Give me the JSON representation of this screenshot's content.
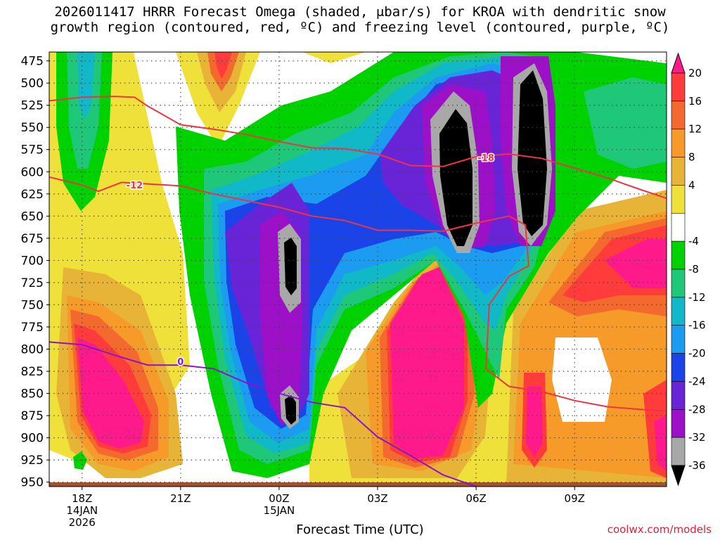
{
  "chart_data": {
    "type": "heatmap",
    "title_line1": "2026011417 HRRR Forecast Omega (shaded, μbar/s) for KROA with dendritic snow",
    "title_line2": "growth region (contoured, red, ºC) and freezing level (contoured, purple, ºC)",
    "xlabel": "Forecast Time (UTC)",
    "ylabel": "",
    "x_ticks": [
      {
        "label": "18Z",
        "sub": [
          "14JAN",
          "2026"
        ],
        "hour": 0
      },
      {
        "label": "21Z",
        "sub": [],
        "hour": 3
      },
      {
        "label": "00Z",
        "sub": [
          "15JAN"
        ],
        "hour": 6
      },
      {
        "label": "03Z",
        "sub": [],
        "hour": 9
      },
      {
        "label": "06Z",
        "sub": [],
        "hour": 12
      },
      {
        "label": "09Z",
        "sub": [],
        "hour": 15
      }
    ],
    "x_range_hours": [
      -1,
      17.8
    ],
    "y_ticks": [
      475,
      500,
      525,
      550,
      575,
      600,
      625,
      650,
      675,
      700,
      725,
      750,
      775,
      800,
      825,
      850,
      875,
      900,
      925,
      950
    ],
    "y_range_mb": [
      465,
      955
    ],
    "colorbar": {
      "labels": [
        "20",
        "16",
        "12",
        "8",
        "4",
        "-4",
        "-8",
        "-12",
        "-16",
        "-20",
        "-24",
        "-28",
        "-32",
        "-36"
      ],
      "colors": [
        "#ff1a8c",
        "#ff3b3b",
        "#f46a2e",
        "#f69a2a",
        "#e8b437",
        "#f0e03a",
        "#ffffff",
        "#00d200",
        "#1ec878",
        "#11b8c8",
        "#1c9cf0",
        "#1a44e8",
        "#6a24d8",
        "#9c10c8",
        "#a8a8a8",
        "#000000"
      ]
    },
    "contours": [
      {
        "name": "-18",
        "color": "#ee3344",
        "points": [
          [
            -1,
            520
          ],
          [
            0,
            516
          ],
          [
            1,
            515
          ],
          [
            1.6,
            516
          ],
          [
            2,
            526
          ],
          [
            3,
            547
          ],
          [
            4,
            552
          ],
          [
            5,
            558
          ],
          [
            6,
            566
          ],
          [
            7,
            573
          ],
          [
            8,
            574
          ],
          [
            9,
            580
          ],
          [
            10,
            593
          ],
          [
            11,
            594
          ],
          [
            12,
            583
          ],
          [
            13,
            580
          ],
          [
            14,
            585
          ],
          [
            15,
            596
          ],
          [
            16,
            607
          ],
          [
            17,
            620
          ],
          [
            17.8,
            630
          ]
        ],
        "label_at": [
          12.3,
          584
        ]
      },
      {
        "name": "-12",
        "color": "#ee3344",
        "points": [
          [
            -1,
            606
          ],
          [
            0,
            615
          ],
          [
            0.5,
            622
          ],
          [
            1.2,
            612
          ],
          [
            3,
            616
          ],
          [
            4,
            625
          ],
          [
            6,
            640
          ],
          [
            7,
            650
          ],
          [
            8,
            655
          ],
          [
            9,
            666
          ],
          [
            10,
            666
          ],
          [
            11,
            667
          ],
          [
            12,
            658
          ],
          [
            13,
            650
          ],
          [
            13.5,
            660
          ],
          [
            13.6,
            706
          ],
          [
            13,
            718
          ],
          [
            12.4,
            750
          ],
          [
            12.3,
            822
          ],
          [
            13,
            842
          ],
          [
            14,
            848
          ],
          [
            15,
            858
          ],
          [
            16,
            865
          ],
          [
            17,
            868
          ],
          [
            17.8,
            870
          ]
        ],
        "label_at": [
          1.6,
          615
        ]
      },
      {
        "name": "0",
        "color": "#8a14c8",
        "points": [
          [
            -1,
            792
          ],
          [
            0,
            795
          ],
          [
            1,
            807
          ],
          [
            2,
            818
          ],
          [
            3,
            818
          ],
          [
            4,
            822
          ],
          [
            5,
            838
          ],
          [
            6,
            850
          ],
          [
            7,
            860
          ],
          [
            8,
            866
          ],
          [
            9,
            899
          ],
          [
            10,
            920
          ],
          [
            11,
            942
          ],
          [
            12,
            955
          ]
        ],
        "label_at": [
          3.0,
          814
        ]
      }
    ]
  }
}
